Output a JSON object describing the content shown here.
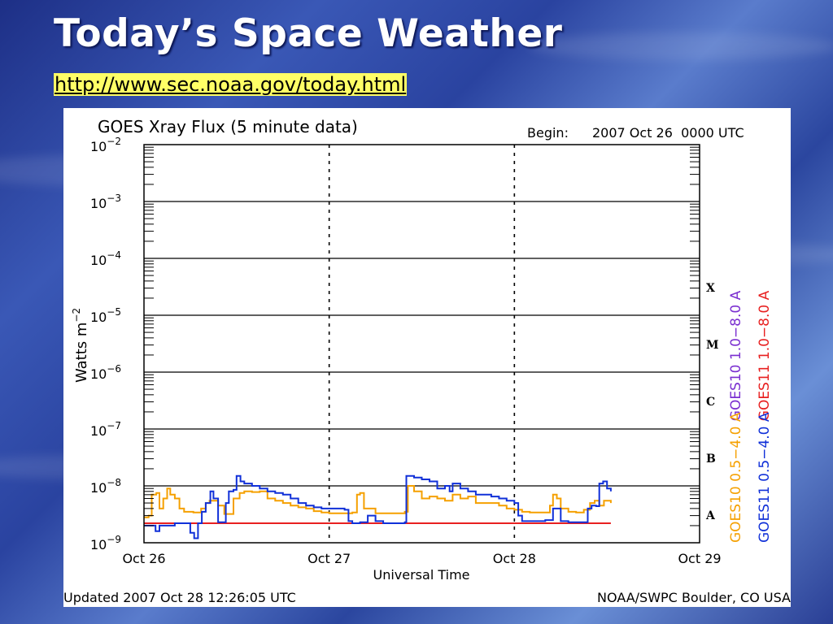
{
  "slide": {
    "title": "Today’s Space Weather",
    "url": "http://www.sec.noaa.gov/today.html"
  },
  "chart_data": {
    "type": "line",
    "title": "GOES Xray Flux (5 minute data)",
    "begin_label": "Begin:",
    "begin_value": "2007 Oct 26  0000 UTC",
    "ylabel_text": "Watts m",
    "ylabel_sup": "−2",
    "xlabel": "Universal Time",
    "y_scale": "log",
    "ylim": [
      1e-09,
      0.01
    ],
    "xlim": [
      0,
      72
    ],
    "x_unit": "hours since 2007 Oct 26 0000 UTC",
    "x_ticks": [
      {
        "x": 0,
        "label": "Oct 26"
      },
      {
        "x": 24,
        "label": "Oct 27"
      },
      {
        "x": 48,
        "label": "Oct 28"
      },
      {
        "x": 72,
        "label": "Oct 29"
      }
    ],
    "y_ticks": [
      {
        "exp": -2,
        "base": "10",
        "sup": "−2"
      },
      {
        "exp": -3,
        "base": "10",
        "sup": "−3"
      },
      {
        "exp": -4,
        "base": "10",
        "sup": "−4"
      },
      {
        "exp": -5,
        "base": "10",
        "sup": "−5"
      },
      {
        "exp": -6,
        "base": "10",
        "sup": "−6"
      },
      {
        "exp": -7,
        "base": "10",
        "sup": "−7"
      },
      {
        "exp": -8,
        "base": "10",
        "sup": "−8"
      },
      {
        "exp": -9,
        "base": "10",
        "sup": "−9"
      }
    ],
    "flare_classes": [
      {
        "label": "X",
        "exp": -4
      },
      {
        "label": "M",
        "exp": -5
      },
      {
        "label": "C",
        "exp": -6
      },
      {
        "label": "B",
        "exp": -7
      },
      {
        "label": "A",
        "exp": -8
      }
    ],
    "legend": [
      {
        "label": "GOES10 1.0−8.0 A",
        "color": "#7a2ed0"
      },
      {
        "label": "GOES11 1.0−8.0 A",
        "color": "#e82020"
      },
      {
        "label": "GOES10 0.5−4.0 A",
        "color": "#f5a000"
      },
      {
        "label": "GOES11 0.5−4.0 A",
        "color": "#1030d8"
      }
    ],
    "grid": true,
    "footer_left": "Updated 2007 Oct 28 12:26:05 UTC",
    "footer_right": "NOAA/SWPC Boulder, CO USA",
    "series": [
      {
        "name": "GOES11 1.0−8.0 A",
        "color": "#e82020",
        "points": [
          [
            0,
            2.2e-09
          ],
          [
            60.5,
            2.2e-09
          ]
        ]
      },
      {
        "name": "GOES10 0.5−4.0 A",
        "color": "#f5a000",
        "points": [
          [
            0,
            2.8e-09
          ],
          [
            0.6,
            3e-09
          ],
          [
            1,
            7e-09
          ],
          [
            1.6,
            7.5e-09
          ],
          [
            2,
            4e-09
          ],
          [
            2.5,
            6e-09
          ],
          [
            3,
            9e-09
          ],
          [
            3.4,
            7e-09
          ],
          [
            4,
            6e-09
          ],
          [
            4.6,
            4e-09
          ],
          [
            5.2,
            3.5e-09
          ],
          [
            6.4,
            3.4e-09
          ],
          [
            7.4,
            4e-09
          ],
          [
            8,
            5e-09
          ],
          [
            8.5,
            5.5e-09
          ],
          [
            9.6,
            4.5e-09
          ],
          [
            10.4,
            3.2e-09
          ],
          [
            11,
            3.2e-09
          ],
          [
            11.6,
            6e-09
          ],
          [
            12.4,
            7.5e-09
          ],
          [
            13,
            8e-09
          ],
          [
            14,
            7.8e-09
          ],
          [
            15,
            8e-09
          ],
          [
            16,
            6e-09
          ],
          [
            17,
            5.5e-09
          ],
          [
            18,
            5e-09
          ],
          [
            19,
            4.5e-09
          ],
          [
            20,
            4.2e-09
          ],
          [
            21,
            4e-09
          ],
          [
            22,
            3.6e-09
          ],
          [
            23,
            3.4e-09
          ],
          [
            24,
            3.3e-09
          ],
          [
            26,
            3.3e-09
          ],
          [
            27,
            3.4e-09
          ],
          [
            27.6,
            7e-09
          ],
          [
            28,
            7.5e-09
          ],
          [
            28.5,
            4e-09
          ],
          [
            30,
            3.3e-09
          ],
          [
            32,
            3.3e-09
          ],
          [
            33,
            3.3e-09
          ],
          [
            33.8,
            3.5e-09
          ],
          [
            34.2,
            1e-08
          ],
          [
            35,
            8e-09
          ],
          [
            36,
            6e-09
          ],
          [
            37,
            6.5e-09
          ],
          [
            38,
            6e-09
          ],
          [
            39,
            5.5e-09
          ],
          [
            40,
            7e-09
          ],
          [
            41,
            6e-09
          ],
          [
            42,
            6.5e-09
          ],
          [
            43,
            5e-09
          ],
          [
            44,
            5e-09
          ],
          [
            45,
            5e-09
          ],
          [
            46,
            4.5e-09
          ],
          [
            47,
            4e-09
          ],
          [
            48,
            3.8e-09
          ],
          [
            49,
            3.5e-09
          ],
          [
            50,
            3.4e-09
          ],
          [
            51,
            3.4e-09
          ],
          [
            52,
            3.4e-09
          ],
          [
            52.6,
            4.5e-09
          ],
          [
            53,
            7e-09
          ],
          [
            53.5,
            6e-09
          ],
          [
            54,
            4e-09
          ],
          [
            55,
            3.5e-09
          ],
          [
            56,
            3.4e-09
          ],
          [
            57,
            3.8e-09
          ],
          [
            57.8,
            5e-09
          ],
          [
            58.4,
            5.5e-09
          ],
          [
            59,
            4.5e-09
          ],
          [
            59.6,
            5.5e-09
          ],
          [
            60,
            5.5e-09
          ],
          [
            60.5,
            5e-09
          ]
        ]
      },
      {
        "name": "GOES11 0.5−4.0 A",
        "color": "#1030d8",
        "points": [
          [
            0,
            2e-09
          ],
          [
            1,
            2e-09
          ],
          [
            1.5,
            1.6e-09
          ],
          [
            2,
            2e-09
          ],
          [
            3,
            2e-09
          ],
          [
            4,
            2.2e-09
          ],
          [
            5.5,
            2.2e-09
          ],
          [
            6,
            1.5e-09
          ],
          [
            6.5,
            1.2e-09
          ],
          [
            7,
            2.2e-09
          ],
          [
            7.5,
            3.5e-09
          ],
          [
            8,
            5e-09
          ],
          [
            8.6,
            8e-09
          ],
          [
            9,
            6e-09
          ],
          [
            9.6,
            2.3e-09
          ],
          [
            10.2,
            2.3e-09
          ],
          [
            10.6,
            5e-09
          ],
          [
            11,
            8e-09
          ],
          [
            11.6,
            8.5e-09
          ],
          [
            12,
            1.5e-08
          ],
          [
            12.5,
            1.2e-08
          ],
          [
            13,
            1.1e-08
          ],
          [
            14,
            1e-08
          ],
          [
            15,
            9e-09
          ],
          [
            16,
            8e-09
          ],
          [
            17,
            7.5e-09
          ],
          [
            18,
            7e-09
          ],
          [
            19,
            6e-09
          ],
          [
            20,
            5e-09
          ],
          [
            21,
            4.5e-09
          ],
          [
            22,
            4.2e-09
          ],
          [
            23,
            4e-09
          ],
          [
            24,
            4e-09
          ],
          [
            25,
            4e-09
          ],
          [
            26,
            3.8e-09
          ],
          [
            26.5,
            2.4e-09
          ],
          [
            27,
            2.2e-09
          ],
          [
            28,
            2.3e-09
          ],
          [
            29,
            3e-09
          ],
          [
            30,
            2.4e-09
          ],
          [
            31,
            2.2e-09
          ],
          [
            33,
            2.2e-09
          ],
          [
            33.8,
            2.3e-09
          ],
          [
            34,
            1.5e-08
          ],
          [
            35,
            1.4e-08
          ],
          [
            36,
            1.3e-08
          ],
          [
            37,
            1.2e-08
          ],
          [
            38,
            9e-09
          ],
          [
            39,
            1e-08
          ],
          [
            39.6,
            8e-09
          ],
          [
            40,
            1.1e-08
          ],
          [
            41,
            9e-09
          ],
          [
            42,
            8e-09
          ],
          [
            43,
            7e-09
          ],
          [
            44,
            7e-09
          ],
          [
            45,
            6.5e-09
          ],
          [
            46,
            6e-09
          ],
          [
            47,
            5.5e-09
          ],
          [
            48,
            5e-09
          ],
          [
            48.5,
            3e-09
          ],
          [
            49,
            2.4e-09
          ],
          [
            50,
            2.4e-09
          ],
          [
            51,
            2.4e-09
          ],
          [
            52,
            2.5e-09
          ],
          [
            53,
            4e-09
          ],
          [
            54,
            2.4e-09
          ],
          [
            55,
            2.3e-09
          ],
          [
            56,
            2.3e-09
          ],
          [
            57,
            2.3e-09
          ],
          [
            57.5,
            4e-09
          ],
          [
            58,
            4.5e-09
          ],
          [
            58.6,
            4.4e-09
          ],
          [
            59,
            1.1e-08
          ],
          [
            59.5,
            1.2e-08
          ],
          [
            60,
            9e-09
          ],
          [
            60.5,
            8e-09
          ]
        ]
      }
    ]
  }
}
